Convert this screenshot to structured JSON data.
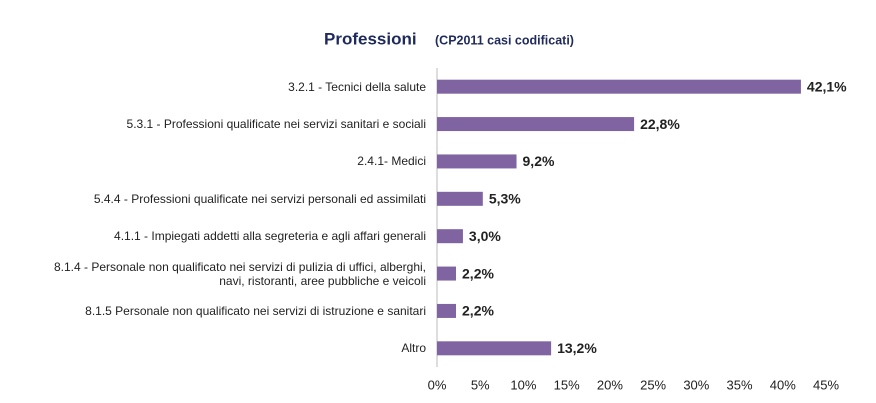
{
  "chart_data": {
    "type": "hbar",
    "title": "Professioni",
    "subtitle": "(CP2011 casi codificati)",
    "categories": [
      "3.2.1 - Tecnici della salute",
      "5.3.1 - Professioni qualificate nei servizi sanitari e sociali",
      "2.4.1- Medici",
      "5.4.4 - Professioni qualificate nei servizi personali ed assimilati",
      "4.1.1 - Impiegati addetti alla segreteria e agli affari generali",
      "8.1.4 - Personale non qualificato nei servizi di pulizia di uffici, alberghi, navi, ristoranti, aree pubbliche e veicoli",
      "8.1.5 Personale non qualificato nei servizi di istruzione e sanitari",
      "Altro"
    ],
    "values": [
      42.1,
      22.8,
      9.2,
      5.3,
      3.0,
      2.2,
      2.2,
      13.2
    ],
    "value_labels": [
      "42,1%",
      "22,8%",
      "9,2%",
      "5,3%",
      "3,0%",
      "2,2%",
      "2,2%",
      "13,2%"
    ],
    "color": "#8064a2",
    "xlim": [
      0,
      45
    ],
    "xticks": [
      {
        "value": 0,
        "label": "0%"
      },
      {
        "value": 5,
        "label": "5%"
      },
      {
        "value": 10,
        "label": "10%"
      },
      {
        "value": 15,
        "label": "15%"
      },
      {
        "value": 20,
        "label": "20%"
      },
      {
        "value": 25,
        "label": "25%"
      },
      {
        "value": 30,
        "label": "30%"
      },
      {
        "value": 35,
        "label": "35%"
      },
      {
        "value": 40,
        "label": "40%"
      },
      {
        "value": 45,
        "label": "45%"
      }
    ]
  }
}
